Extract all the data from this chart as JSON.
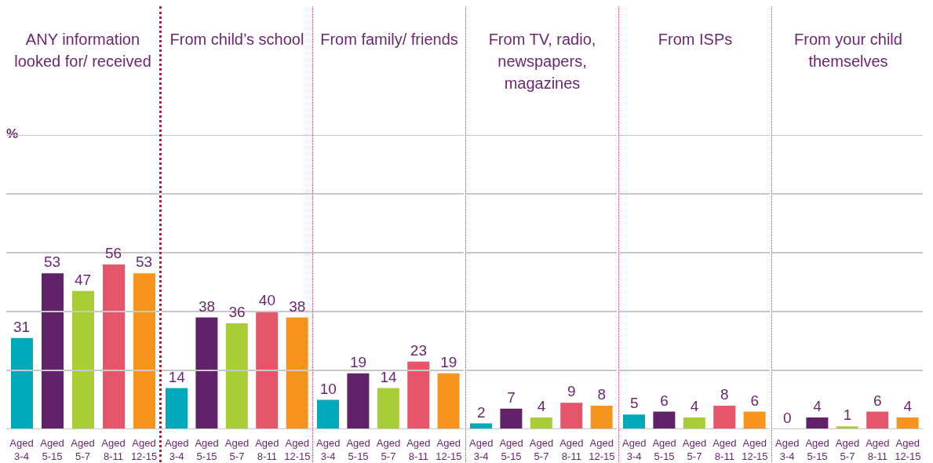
{
  "chart_data": [
    {
      "type": "bar",
      "title": "ANY information looked for/ received",
      "ylabel": "%",
      "categories": [
        "Aged 3-4",
        "Aged 5-15",
        "Aged 5-7",
        "Aged 8-11",
        "Aged 12-15"
      ],
      "values": [
        31,
        53,
        47,
        56,
        53
      ],
      "colors": [
        "#00a9b9",
        "#61226a",
        "#a8cd37",
        "#e5566a",
        "#f7941e"
      ],
      "data_labels": true,
      "ylim": [
        0,
        100
      ],
      "yticks": [
        {
          "value": 0,
          "label": null
        },
        {
          "value": 20,
          "label": null
        },
        {
          "value": 40,
          "label": null
        },
        {
          "value": 60,
          "label": null
        },
        {
          "value": 80,
          "label": null
        },
        {
          "value": 100,
          "label": null
        }
      ],
      "grid": "y",
      "tick_labels": "x"
    },
    {
      "type": "bar",
      "title": "From child’s school",
      "categories": [
        "Aged 3-4",
        "Aged 5-15",
        "Aged 5-7",
        "Aged 8-11",
        "Aged 12-15"
      ],
      "values": [
        14,
        38,
        36,
        40,
        38
      ],
      "colors": [
        "#00a9b9",
        "#61226a",
        "#a8cd37",
        "#e5566a",
        "#f7941e"
      ],
      "data_labels": true,
      "ylim": [
        0,
        100
      ],
      "yticks": [
        {
          "value": 0,
          "label": null
        },
        {
          "value": 20,
          "label": null
        },
        {
          "value": 40,
          "label": null
        },
        {
          "value": 60,
          "label": null
        },
        {
          "value": 80,
          "label": null
        },
        {
          "value": 100,
          "label": null
        }
      ],
      "grid": "y",
      "tick_labels": "x"
    },
    {
      "type": "bar",
      "title": "From family/ friends",
      "categories": [
        "Aged 3-4",
        "Aged 5-15",
        "Aged 5-7",
        "Aged 8-11",
        "Aged 12-15"
      ],
      "values": [
        10,
        19,
        14,
        23,
        19
      ],
      "colors": [
        "#00a9b9",
        "#61226a",
        "#a8cd37",
        "#e5566a",
        "#f7941e"
      ],
      "data_labels": true,
      "ylim": [
        0,
        100
      ],
      "yticks": [
        {
          "value": 0,
          "label": null
        },
        {
          "value": 20,
          "label": null
        },
        {
          "value": 40,
          "label": null
        },
        {
          "value": 60,
          "label": null
        },
        {
          "value": 80,
          "label": null
        },
        {
          "value": 100,
          "label": null
        }
      ],
      "grid": "y",
      "tick_labels": "x"
    },
    {
      "type": "bar",
      "title": "From TV, radio, newspapers, magazines",
      "categories": [
        "Aged 3-4",
        "Aged 5-15",
        "Aged 5-7",
        "Aged 8-11",
        "Aged 12-15"
      ],
      "values": [
        2,
        7,
        4,
        9,
        8
      ],
      "colors": [
        "#00a9b9",
        "#61226a",
        "#a8cd37",
        "#e5566a",
        "#f7941e"
      ],
      "data_labels": true,
      "ylim": [
        0,
        100
      ],
      "yticks": [
        {
          "value": 0,
          "label": null
        },
        {
          "value": 20,
          "label": null
        },
        {
          "value": 40,
          "label": null
        },
        {
          "value": 60,
          "label": null
        },
        {
          "value": 80,
          "label": null
        },
        {
          "value": 100,
          "label": null
        }
      ],
      "grid": "y",
      "tick_labels": "x"
    },
    {
      "type": "bar",
      "title": "From ISPs",
      "categories": [
        "Aged 3-4",
        "Aged 5-15",
        "Aged 5-7",
        "Aged 8-11",
        "Aged 12-15"
      ],
      "values": [
        5,
        6,
        4,
        8,
        6
      ],
      "colors": [
        "#00a9b9",
        "#61226a",
        "#a8cd37",
        "#e5566a",
        "#f7941e"
      ],
      "data_labels": true,
      "ylim": [
        0,
        100
      ],
      "yticks": [
        {
          "value": 0,
          "label": null
        },
        {
          "value": 20,
          "label": null
        },
        {
          "value": 40,
          "label": null
        },
        {
          "value": 60,
          "label": null
        },
        {
          "value": 80,
          "label": null
        },
        {
          "value": 100,
          "label": null
        }
      ],
      "grid": "y",
      "tick_labels": "x"
    },
    {
      "type": "bar",
      "title": "From your child themselves",
      "categories": [
        "Aged 3-4",
        "Aged 5-15",
        "Aged 5-7",
        "Aged 8-11",
        "Aged 12-15"
      ],
      "values": [
        0,
        4,
        1,
        6,
        4
      ],
      "colors": [
        "#00a9b9",
        "#61226a",
        "#a8cd37",
        "#e5566a",
        "#f7941e"
      ],
      "data_labels": true,
      "ylim": [
        0,
        100
      ],
      "yticks": [
        {
          "value": 0,
          "label": null
        },
        {
          "value": 20,
          "label": null
        },
        {
          "value": 40,
          "label": null
        },
        {
          "value": 60,
          "label": null
        },
        {
          "value": 80,
          "label": null
        },
        {
          "value": 100,
          "label": null
        }
      ],
      "grid": "y",
      "tick_labels": "x"
    }
  ]
}
